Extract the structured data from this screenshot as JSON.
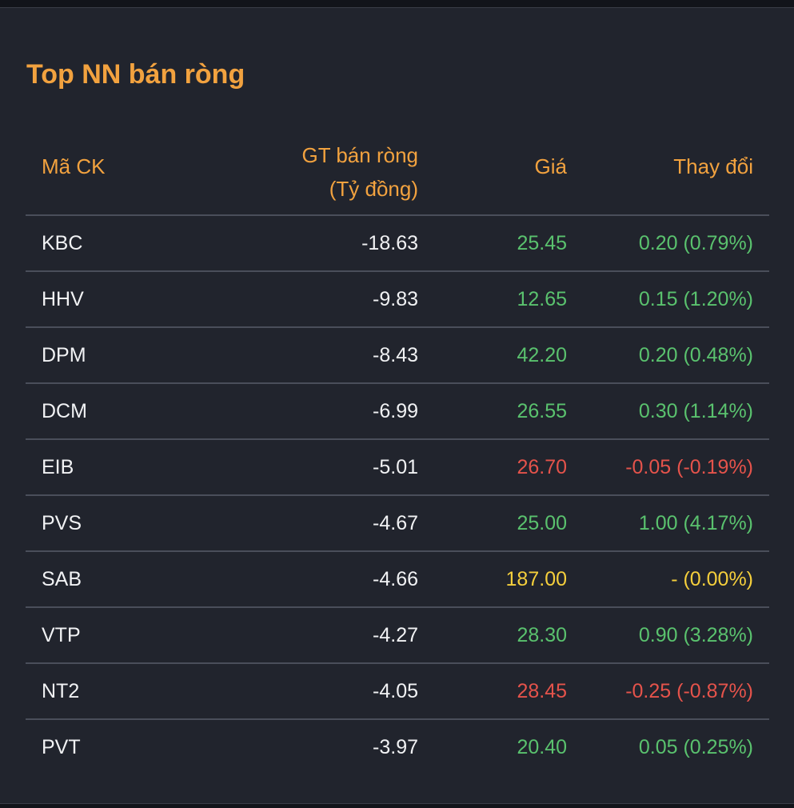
{
  "title": "Top NN bán ròng",
  "colors": {
    "accent": "#f2a23f",
    "up": "#5ac26e",
    "down": "#e5534b",
    "ref": "#f5cf3c",
    "text": "#f1f2f4",
    "background": "#21242d"
  },
  "table": {
    "headers": {
      "code": "Mã CK",
      "value_line1": "GT bán ròng",
      "value_line2": "(Tỷ đồng)",
      "price": "Giá",
      "change": "Thay đổi"
    },
    "rows": [
      {
        "code": "KBC",
        "value": "-18.63",
        "price": "25.45",
        "change": "0.20 (0.79%)",
        "status": "up"
      },
      {
        "code": "HHV",
        "value": "-9.83",
        "price": "12.65",
        "change": "0.15 (1.20%)",
        "status": "up"
      },
      {
        "code": "DPM",
        "value": "-8.43",
        "price": "42.20",
        "change": "0.20 (0.48%)",
        "status": "up"
      },
      {
        "code": "DCM",
        "value": "-6.99",
        "price": "26.55",
        "change": "0.30 (1.14%)",
        "status": "up"
      },
      {
        "code": "EIB",
        "value": "-5.01",
        "price": "26.70",
        "change": "-0.05 (-0.19%)",
        "status": "down"
      },
      {
        "code": "PVS",
        "value": "-4.67",
        "price": "25.00",
        "change": "1.00 (4.17%)",
        "status": "up"
      },
      {
        "code": "SAB",
        "value": "-4.66",
        "price": "187.00",
        "change": "- (0.00%)",
        "status": "ref"
      },
      {
        "code": "VTP",
        "value": "-4.27",
        "price": "28.30",
        "change": "0.90 (3.28%)",
        "status": "up"
      },
      {
        "code": "NT2",
        "value": "-4.05",
        "price": "28.45",
        "change": "-0.25 (-0.87%)",
        "status": "down"
      },
      {
        "code": "PVT",
        "value": "-3.97",
        "price": "20.40",
        "change": "0.05 (0.25%)",
        "status": "up"
      }
    ]
  }
}
